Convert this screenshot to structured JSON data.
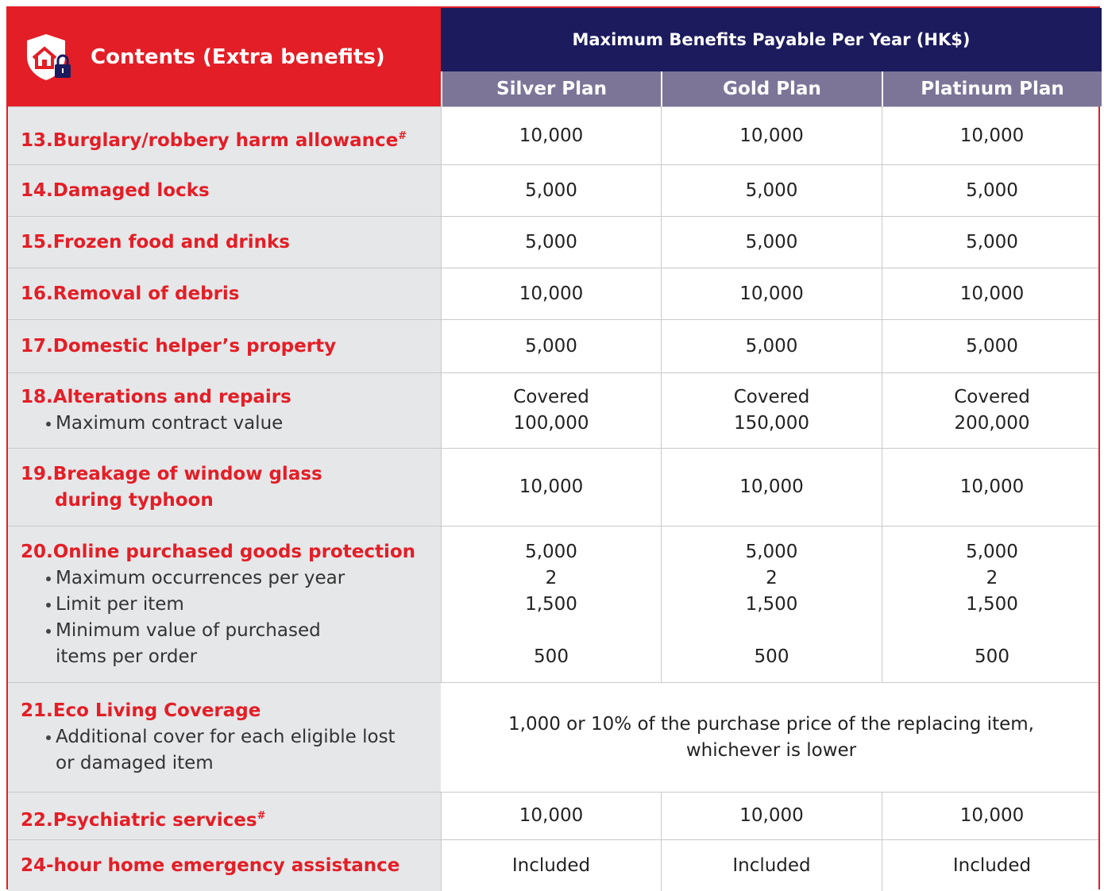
{
  "header": {
    "title": "Contents (Extra benefits)",
    "caption": "Maximum Benefits Payable Per Year (HK$)",
    "plans": [
      "Silver Plan",
      "Gold Plan",
      "Platinum Plan"
    ]
  },
  "rows": [
    {
      "label": [
        "13.Burglary/robbery harm allowance"
      ],
      "mark": "#",
      "values": [
        [
          "10,000"
        ],
        [
          "10,000"
        ],
        [
          "10,000"
        ]
      ]
    },
    {
      "label": [
        "14.Damaged locks"
      ],
      "values": [
        [
          "5,000"
        ],
        [
          "5,000"
        ],
        [
          "5,000"
        ]
      ]
    },
    {
      "label": [
        "15.Frozen food and drinks"
      ],
      "values": [
        [
          "5,000"
        ],
        [
          "5,000"
        ],
        [
          "5,000"
        ]
      ]
    },
    {
      "label": [
        "16.Removal of debris"
      ],
      "values": [
        [
          "10,000"
        ],
        [
          "10,000"
        ],
        [
          "10,000"
        ]
      ]
    },
    {
      "label": [
        "17.Domestic helper’s property"
      ],
      "values": [
        [
          "5,000"
        ],
        [
          "5,000"
        ],
        [
          "5,000"
        ]
      ]
    },
    {
      "label": [
        "18.Alterations and repairs"
      ],
      "items": [
        [
          "Maximum contract value"
        ]
      ],
      "values": [
        [
          "Covered",
          "100,000"
        ],
        [
          "Covered",
          "150,000"
        ],
        [
          "Covered",
          "200,000"
        ]
      ]
    },
    {
      "label": [
        "19.Breakage of window glass",
        "during typhoon"
      ],
      "values": [
        [
          "10,000"
        ],
        [
          "10,000"
        ],
        [
          "10,000"
        ]
      ]
    },
    {
      "label": [
        "20.Online purchased goods protection"
      ],
      "items": [
        [
          "Maximum occurrences per year"
        ],
        [
          "Limit per item"
        ],
        [
          "Minimum value of purchased",
          "items per order"
        ]
      ],
      "values": [
        [
          "5,000",
          "2",
          "1,500",
          "500"
        ],
        [
          "5,000",
          "2",
          "1,500",
          "500"
        ],
        [
          "5,000",
          "2",
          "1,500",
          "500"
        ]
      ]
    },
    {
      "label": [
        "21.Eco Living Coverage"
      ],
      "items": [
        [
          "Additional cover for each eligible lost",
          "or damaged item"
        ]
      ],
      "shared": [
        "1,000 or 10% of the purchase price of the replacing item,",
        "whichever is lower"
      ]
    },
    {
      "label": [
        "22.Psychiatric services"
      ],
      "mark": "#",
      "values": [
        [
          "10,000"
        ],
        [
          "10,000"
        ],
        [
          "10,000"
        ]
      ]
    },
    {
      "label": [
        "24-hour home emergency assistance"
      ],
      "values": [
        [
          "Included"
        ],
        [
          "Included"
        ],
        [
          "Included"
        ]
      ]
    }
  ]
}
